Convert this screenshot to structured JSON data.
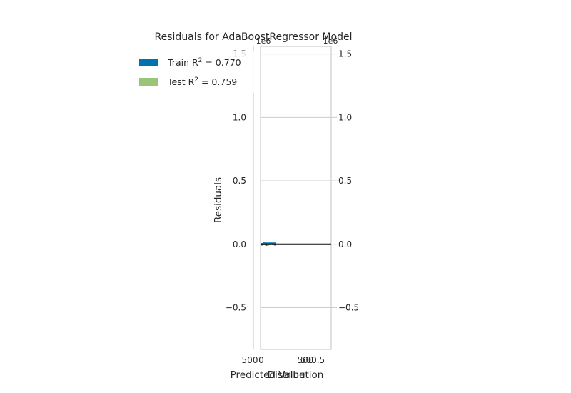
{
  "chart_data": {
    "type": "scatter",
    "title": "Residuals for AdaBoostRegressor Model",
    "xlabel": "Predicted Value",
    "ylabel": "Residuals",
    "ylim": [
      -0.83,
      1.56
    ],
    "yticks": [
      "−0.5",
      "0.0",
      "0.5",
      "1.0",
      "1.5"
    ],
    "ytick_values": [
      -0.5,
      0.0,
      0.5,
      1.0,
      1.5
    ],
    "xtick_labels": [
      "500",
      "500.5"
    ],
    "grid": true,
    "legend_position": "top-left",
    "series": [
      {
        "name": "Train R^2 = 0.770",
        "color": "#0072B2",
        "points": [
          [
            500.0,
            0.0
          ],
          [
            500.05,
            0.005
          ],
          [
            500.1,
            -0.003
          ],
          [
            500.2,
            0.004
          ],
          [
            500.3,
            0.0
          ]
        ]
      },
      {
        "name": "Test R^2 = 0.759",
        "color": "#9BC479",
        "points": [
          [
            500.05,
            0.002
          ],
          [
            500.15,
            -0.002
          ],
          [
            500.25,
            0.003
          ]
        ]
      }
    ],
    "legend": [
      {
        "label": "Train R",
        "exp": "2",
        "rest": " = 0.770",
        "color": "#0072B2"
      },
      {
        "label": "Test R",
        "exp": "2",
        "rest": " = 0.759",
        "color": "#9BC479"
      }
    ],
    "distribution": {
      "xlabel": "Distribution",
      "xtick_labels": [
        "0",
        "500"
      ],
      "top_tick_labels": [
        "1e6",
        "1e6"
      ],
      "color": "#0072B2"
    }
  }
}
